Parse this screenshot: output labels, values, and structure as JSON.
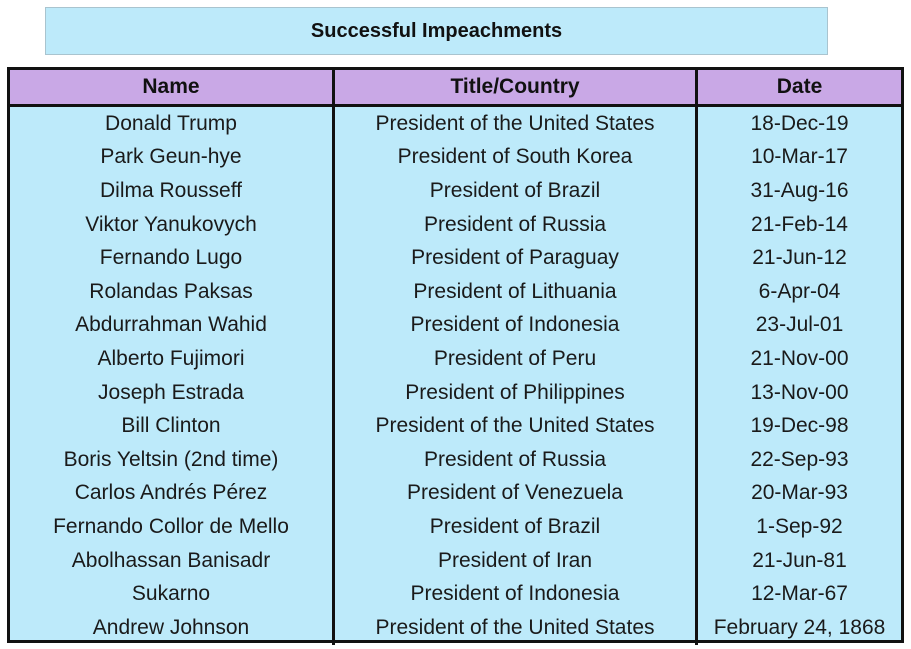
{
  "title": "Successful Impeachments",
  "headers": {
    "name": "Name",
    "title_country": "Title/Country",
    "date": "Date"
  },
  "rows": [
    {
      "name": "Donald Trump",
      "title": "President of the United States",
      "date": "18-Dec-19"
    },
    {
      "name": "Park Geun-hye",
      "title": "President of South Korea",
      "date": "10-Mar-17"
    },
    {
      "name": "Dilma Rousseff",
      "title": "President of Brazil",
      "date": "31-Aug-16"
    },
    {
      "name": "Viktor Yanukovych",
      "title": "President of Russia",
      "date": "21-Feb-14"
    },
    {
      "name": "Fernando Lugo",
      "title": "President of Paraguay",
      "date": "21-Jun-12"
    },
    {
      "name": "Rolandas Paksas",
      "title": "President of Lithuania",
      "date": "6-Apr-04"
    },
    {
      "name": "Abdurrahman Wahid",
      "title": "President of Indonesia",
      "date": "23-Jul-01"
    },
    {
      "name": "Alberto Fujimori",
      "title": "President of Peru",
      "date": "21-Nov-00"
    },
    {
      "name": "Joseph Estrada",
      "title": "President of Philippines",
      "date": "13-Nov-00"
    },
    {
      "name": "Bill Clinton",
      "title": "President of the United States",
      "date": "19-Dec-98"
    },
    {
      "name": "Boris Yeltsin (2nd time)",
      "title": "President of Russia",
      "date": "22-Sep-93"
    },
    {
      "name": "Carlos Andrés Pérez",
      "title": "President of Venezuela",
      "date": "20-Mar-93"
    },
    {
      "name": "Fernando Collor de Mello",
      "title": "President of Brazil",
      "date": "1-Sep-92"
    },
    {
      "name": "Abolhassan Banisadr",
      "title": "President of Iran",
      "date": "21-Jun-81"
    },
    {
      "name": "Sukarno",
      "title": "President of Indonesia",
      "date": "12-Mar-67"
    },
    {
      "name": "Andrew Johnson",
      "title": "President of the United States",
      "date": "February 24, 1868"
    }
  ]
}
